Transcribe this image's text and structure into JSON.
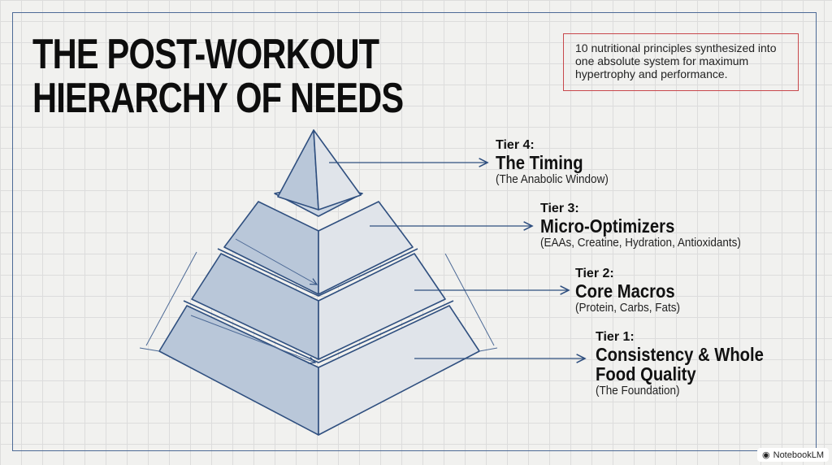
{
  "title": {
    "line1": "THE POST-WORKOUT",
    "line2": "HIERARCHY OF NEEDS"
  },
  "note": "10 nutritional principles synthesized into one absolute system for maximum hypertrophy and performance.",
  "tiers": [
    {
      "tier": "Tier 4:",
      "name": "The Timing",
      "desc": "(The Anabolic Window)"
    },
    {
      "tier": "Tier 3:",
      "name": "Micro-Optimizers",
      "desc": "(EAAs, Creatine, Hydration, Antioxidants)"
    },
    {
      "tier": "Tier 2:",
      "name": "Core Macros",
      "desc": "(Protein, Carbs, Fats)"
    },
    {
      "tier": "Tier 1:",
      "name": "Consistency & Whole Food Quality",
      "desc": "(The Foundation)"
    }
  ],
  "badge": {
    "label": "NotebookLM",
    "icon": "notebooklm-logo-icon"
  },
  "colors": {
    "line": "#2f4f7f",
    "left_face": "#b9c7d9",
    "right_face": "#e0e4ea",
    "note_border": "#c8484c"
  }
}
